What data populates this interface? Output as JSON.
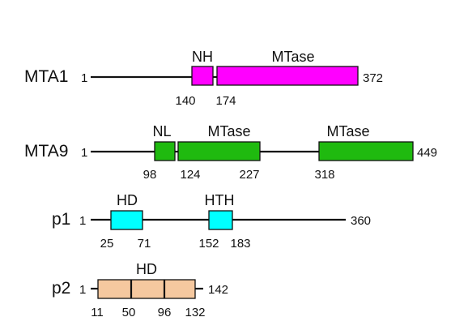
{
  "proteins": [
    {
      "name": "MTA1",
      "start": "1",
      "end": "372",
      "domains": [
        {
          "label": "NH",
          "color": "#ff00ff"
        },
        {
          "label": "MTase",
          "color": "#ff00ff"
        }
      ],
      "positions": [
        "140",
        "174"
      ]
    },
    {
      "name": "MTA9",
      "start": "1",
      "end": "449",
      "domains": [
        {
          "label": "NL",
          "color": "#1fba0f"
        },
        {
          "label": "MTase",
          "color": "#1fba0f"
        },
        {
          "label": "MTase",
          "color": "#1fba0f"
        }
      ],
      "positions": [
        "98",
        "124",
        "227",
        "318"
      ]
    },
    {
      "name": "p1",
      "start": "1",
      "end": "360",
      "domains": [
        {
          "label": "HD",
          "color": "#00ffff"
        },
        {
          "label": "HTH",
          "color": "#00ffff"
        }
      ],
      "positions": [
        "25",
        "71",
        "152",
        "183"
      ]
    },
    {
      "name": "p2",
      "start": "1",
      "end": "142",
      "domains": [
        {
          "label": "HD",
          "color": "#f5c89f"
        }
      ],
      "positions": [
        "11",
        "50",
        "96",
        "132"
      ]
    }
  ]
}
